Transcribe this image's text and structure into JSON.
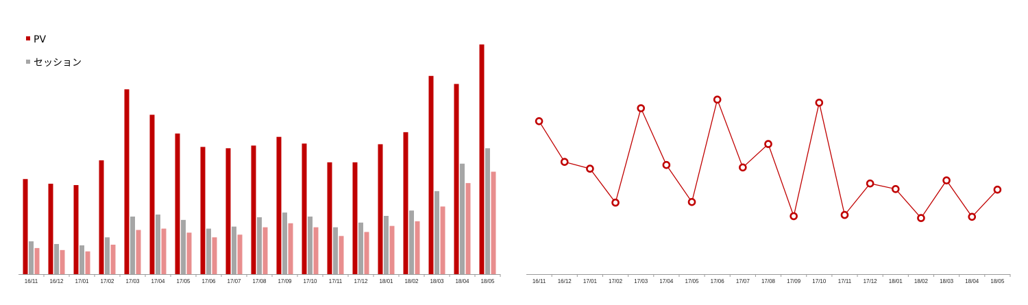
{
  "chart_data": [
    {
      "type": "bar",
      "categories": [
        "16/11",
        "16/12",
        "17/01",
        "17/02",
        "17/03",
        "17/04",
        "17/05",
        "17/06",
        "17/07",
        "17/08",
        "17/09",
        "17/10",
        "17/11",
        "17/12",
        "18/01",
        "18/02",
        "18/03",
        "18/04",
        "18/05"
      ],
      "series": [
        {
          "name": "PV",
          "color": "#c00000",
          "values": [
            142,
            135,
            133,
            170,
            276,
            238,
            210,
            190,
            188,
            192,
            205,
            195,
            167,
            167,
            194,
            212,
            296,
            284,
            343
          ]
        },
        {
          "name": "セッション",
          "color": "#a6a6a6",
          "values": [
            49,
            45,
            43,
            55,
            86,
            89,
            81,
            68,
            71,
            85,
            92,
            86,
            70,
            77,
            87,
            95,
            124,
            165,
            188
          ]
        },
        {
          "name": "",
          "color": "#e88e8e",
          "values": [
            39,
            36,
            34,
            44,
            66,
            68,
            62,
            55,
            59,
            70,
            76,
            70,
            57,
            63,
            72,
            79,
            101,
            136,
            153
          ]
        }
      ],
      "ylim": [
        0,
        350
      ],
      "legend": [
        "PV",
        "セッション"
      ],
      "legend_position": "top-left",
      "grid": false
    },
    {
      "type": "line",
      "categories": [
        "16/11",
        "16/12",
        "17/01",
        "17/02",
        "17/03",
        "17/04",
        "17/05",
        "17/06",
        "17/07",
        "17/08",
        "17/09",
        "17/10",
        "17/11",
        "17/12",
        "18/01",
        "18/02",
        "18/03",
        "18/04",
        "18/05"
      ],
      "series": [
        {
          "color": "#c00000",
          "values": [
            2.48,
            1.82,
            1.71,
            1.16,
            2.69,
            1.77,
            1.17,
            2.83,
            1.73,
            2.11,
            0.94,
            2.78,
            0.96,
            1.47,
            1.38,
            0.91,
            1.52,
            0.93,
            1.37
          ]
        }
      ],
      "ylim": [
        0,
        3.8
      ],
      "grid": false
    }
  ]
}
